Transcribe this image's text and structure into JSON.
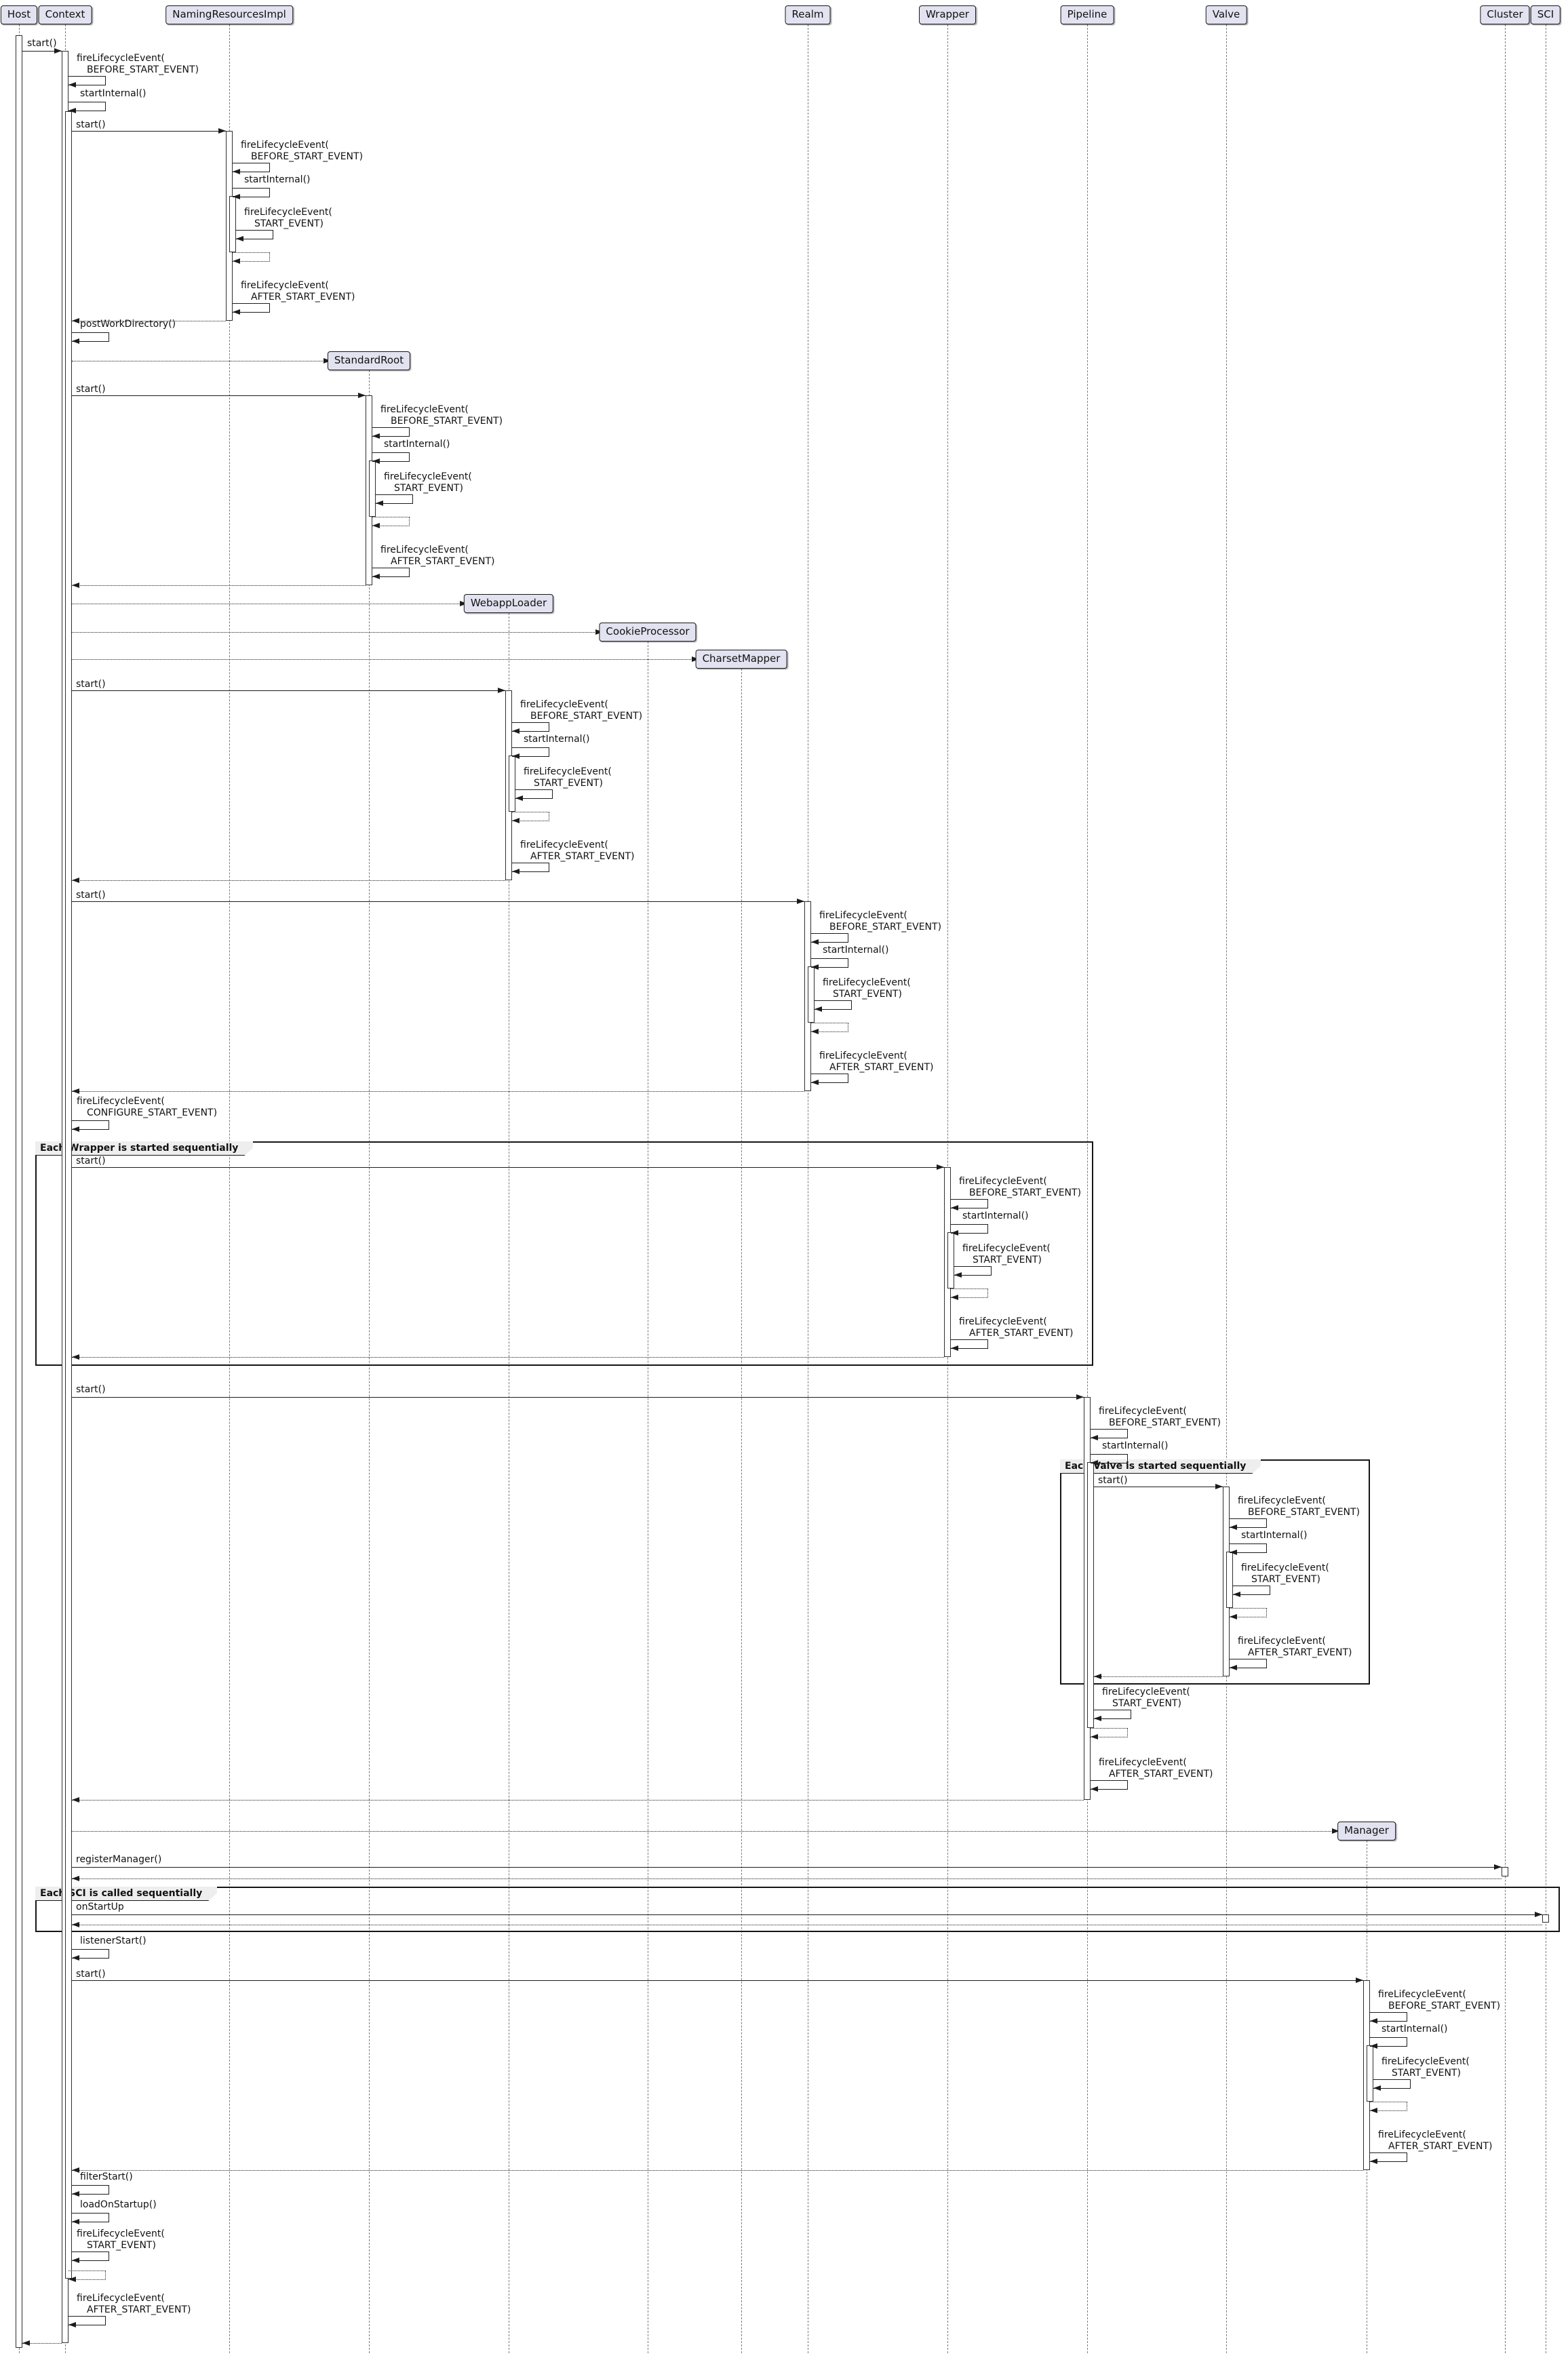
{
  "diagram": {
    "participants": [
      {
        "name": "Host"
      },
      {
        "name": "Context"
      },
      {
        "name": "NamingResourcesImpl"
      },
      {
        "name": "Realm"
      },
      {
        "name": "Wrapper"
      },
      {
        "name": "Pipeline"
      },
      {
        "name": "Valve"
      },
      {
        "name": "Cluster"
      },
      {
        "name": "SCI"
      }
    ],
    "created_participants": [
      {
        "name": "StandardRoot"
      },
      {
        "name": "WebappLoader"
      },
      {
        "name": "CookieProcessor"
      },
      {
        "name": "CharsetMapper"
      },
      {
        "name": "Manager"
      }
    ],
    "frames": {
      "wrapper": "Each Wrapper is started sequentially",
      "valve": "Each Valve is started sequentially",
      "sci": "Each SCI is called sequentially"
    },
    "messages": {
      "start": "start()",
      "fire_open": "fireLifecycleEvent(",
      "before_arg": "BEFORE_START_EVENT)",
      "start_arg": "START_EVENT)",
      "after_arg": "AFTER_START_EVENT)",
      "configure_arg": "CONFIGURE_START_EVENT)",
      "start_internal": "startInternal()",
      "post_work_directory": "postWorkDirectory()",
      "register_manager": "registerManager()",
      "on_startup": "onStartUp",
      "listener_start": "listenerStart()",
      "filter_start": "filterStart()",
      "load_on_startup": "loadOnStartup()"
    },
    "lifecycle_started_participants": [
      "NamingResourcesImpl",
      "StandardRoot",
      "WebappLoader",
      "Realm",
      "Wrapper",
      "Pipeline",
      "Valve",
      "Manager"
    ],
    "colors": {
      "participant_fill": "#E2E2F0",
      "participant_border": "#181818",
      "frame_label_fill": "#EEEEEE",
      "line_color": "#1C1C1C",
      "lifeline_color": "#7A7A7A"
    }
  }
}
